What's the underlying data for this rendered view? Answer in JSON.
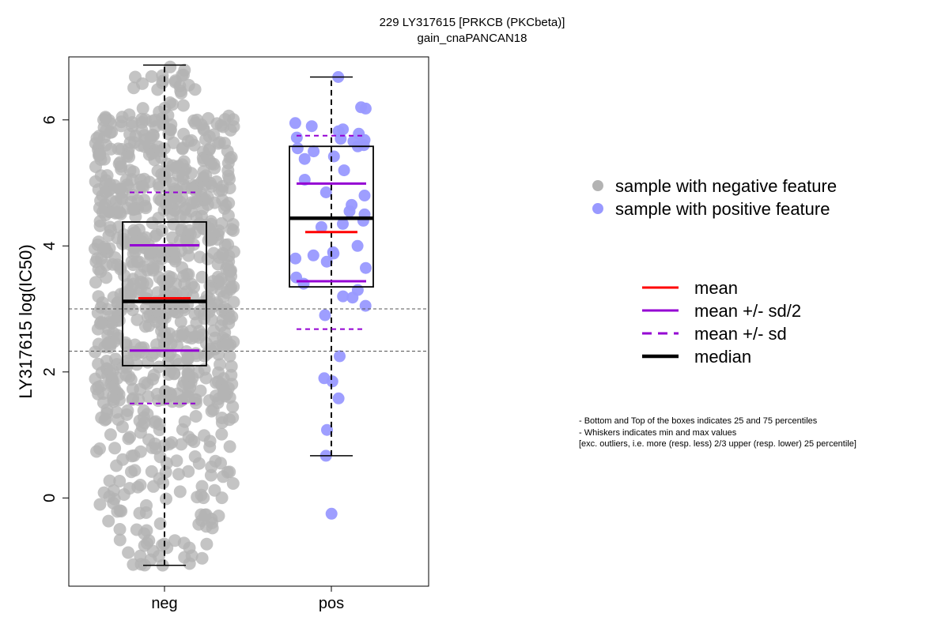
{
  "chart_data": {
    "type": "boxplot",
    "title": "229 LY317615 [PRKCB (PKCbeta)]",
    "subtitle": "gain_cnaPANCAN18",
    "ylabel": "LY317615 log(IC50)",
    "ylim": [
      -1.4,
      7.0
    ],
    "yticks": [
      0,
      2,
      4,
      6
    ],
    "categories": [
      "neg",
      "pos"
    ],
    "reference_lines": [
      3.0,
      2.33
    ],
    "groups": [
      {
        "name": "neg",
        "color": "#b3b3b3",
        "whisker_min": -1.07,
        "q1": 2.1,
        "median": 3.12,
        "q3": 4.38,
        "whisker_max": 6.87,
        "mean": 3.17,
        "mean_minus_half_sd": 2.34,
        "mean_plus_half_sd": 4.01,
        "mean_minus_sd": 1.5,
        "mean_plus_sd": 4.85,
        "n_points_estimated": 900
      },
      {
        "name": "pos",
        "color": "#9999ff",
        "whisker_min": 0.67,
        "q1": 3.35,
        "median": 4.44,
        "q3": 5.58,
        "whisker_max": 6.68,
        "mean": 4.22,
        "mean_minus_half_sd": 3.44,
        "mean_plus_half_sd": 4.99,
        "mean_minus_sd": 2.68,
        "mean_plus_sd": 5.75,
        "points": [
          6.68,
          6.2,
          6.18,
          5.95,
          5.9,
          5.85,
          5.82,
          5.78,
          5.72,
          5.7,
          5.68,
          5.66,
          5.6,
          5.58,
          5.55,
          5.5,
          5.42,
          5.38,
          5.2,
          5.05,
          4.85,
          4.8,
          4.65,
          4.55,
          4.5,
          4.4,
          4.35,
          4.3,
          4.0,
          3.9,
          3.88,
          3.85,
          3.8,
          3.75,
          3.65,
          3.5,
          3.4,
          3.3,
          3.2,
          3.18,
          3.05,
          2.9,
          2.25,
          1.9,
          1.85,
          1.58,
          1.08,
          0.67,
          -0.25
        ]
      }
    ]
  },
  "legend_points": [
    {
      "label": "sample with negative feature",
      "color": "#b3b3b3"
    },
    {
      "label": "sample with positive feature",
      "color": "#9999ff"
    }
  ],
  "legend_lines": [
    {
      "label": "mean",
      "color": "#ff0000",
      "style": "solid"
    },
    {
      "label": "mean +/- sd/2",
      "color": "#9400d3",
      "style": "solid"
    },
    {
      "label": "mean +/- sd",
      "color": "#9400d3",
      "style": "dashed"
    },
    {
      "label": "median",
      "color": "#000000",
      "style": "solid-thick"
    }
  ],
  "notes": [
    "- Bottom and Top of the boxes indicates 25 and 75 percentiles",
    "- Whiskers indicates min and max values",
    "[exc. outliers, i.e. more (resp. less) 2/3 upper (resp. lower) 25 percentile]"
  ]
}
